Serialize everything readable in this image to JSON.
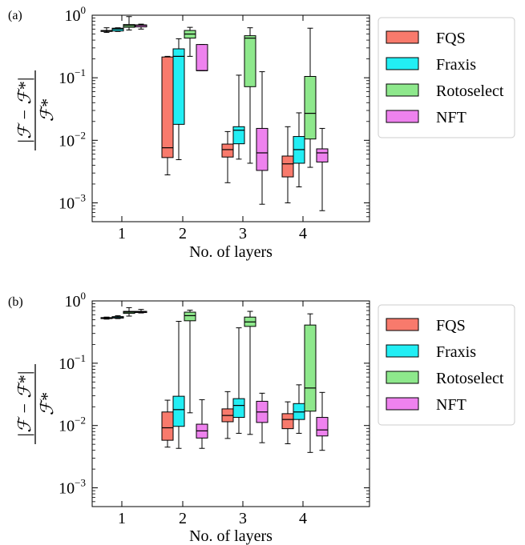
{
  "figure": {
    "ylabel": {
      "numerator": "|ℱ − ℱ*|",
      "denominator": "ℱ*"
    }
  },
  "colors": {
    "FQS": "#f87a6c",
    "Fraxis": "#22eef4",
    "Rotoselect": "#8ee88c",
    "NFT": "#ee82ee"
  },
  "chart_data": [
    {
      "type": "box",
      "panel_label": "(a)",
      "xlabel": "No. of layers",
      "categories": [
        "1",
        "2",
        "3",
        "4"
      ],
      "yscale": "log",
      "ylim": [
        0.0005,
        1
      ],
      "ytick_labels": [
        {
          "base": "10",
          "exp": "0",
          "value": 1
        },
        {
          "base": "10",
          "exp": "−1",
          "value": 0.1
        },
        {
          "base": "10",
          "exp": "−2",
          "value": 0.01
        },
        {
          "base": "10",
          "exp": "−3",
          "value": 0.001
        }
      ],
      "legend": {
        "position": "right",
        "entries": [
          "FQS",
          "Fraxis",
          "Rotoselect",
          "NFT"
        ]
      },
      "series": [
        {
          "name": "FQS",
          "boxes": [
            {
              "layers": 1,
              "whislo": 0.53,
              "q1": 0.55,
              "med": 0.56,
              "q3": 0.57,
              "whishi": 0.63
            },
            {
              "layers": 2,
              "whislo": 0.0028,
              "q1": 0.0053,
              "med": 0.0076,
              "q3": 0.215,
              "whishi": 0.22
            },
            {
              "layers": 3,
              "whislo": 0.0021,
              "q1": 0.0054,
              "med": 0.0071,
              "q3": 0.0087,
              "whishi": 0.0138
            },
            {
              "layers": 4,
              "whislo": 0.001,
              "q1": 0.0026,
              "med": 0.0042,
              "q3": 0.0056,
              "whishi": 0.0165
            }
          ]
        },
        {
          "name": "Fraxis",
          "boxes": [
            {
              "layers": 1,
              "whislo": 0.55,
              "q1": 0.56,
              "med": 0.6,
              "q3": 0.62,
              "whishi": 0.63
            },
            {
              "layers": 2,
              "whislo": 0.0049,
              "q1": 0.018,
              "med": 0.22,
              "q3": 0.29,
              "whishi": 0.42
            },
            {
              "layers": 3,
              "whislo": 0.005,
              "q1": 0.0088,
              "med": 0.0145,
              "q3": 0.0165,
              "whishi": 0.11
            },
            {
              "layers": 4,
              "whislo": 0.0018,
              "q1": 0.0043,
              "med": 0.0071,
              "q3": 0.0115,
              "whishi": 0.0275
            }
          ]
        },
        {
          "name": "Rotoselect",
          "boxes": [
            {
              "layers": 1,
              "whislo": 0.58,
              "q1": 0.64,
              "med": 0.68,
              "q3": 0.71,
              "whishi": 0.95
            },
            {
              "layers": 2,
              "whislo": 0.22,
              "q1": 0.43,
              "med": 0.5,
              "q3": 0.57,
              "whishi": 0.64
            },
            {
              "layers": 3,
              "whislo": 0.0043,
              "q1": 0.072,
              "med": 0.43,
              "q3": 0.47,
              "whishi": 0.63
            },
            {
              "layers": 4,
              "whislo": 0.0037,
              "q1": 0.0105,
              "med": 0.027,
              "q3": 0.105,
              "whishi": 0.62
            }
          ]
        },
        {
          "name": "NFT",
          "boxes": [
            {
              "layers": 1,
              "whislo": 0.6,
              "q1": 0.65,
              "med": 0.69,
              "q3": 0.7,
              "whishi": 0.72
            },
            {
              "layers": 2,
              "whislo": 0.13,
              "q1": 0.13,
              "med": 0.13,
              "q3": 0.34,
              "whishi": 0.34
            },
            {
              "layers": 3,
              "whislo": 0.00095,
              "q1": 0.0033,
              "med": 0.0063,
              "q3": 0.0155,
              "whishi": 0.125
            },
            {
              "layers": 4,
              "whislo": 0.00075,
              "q1": 0.0045,
              "med": 0.0063,
              "q3": 0.0073,
              "whishi": 0.0155
            }
          ]
        }
      ]
    },
    {
      "type": "box",
      "panel_label": "(b)",
      "xlabel": "No. of layers",
      "categories": [
        "1",
        "2",
        "3",
        "4"
      ],
      "yscale": "log",
      "ylim": [
        0.0005,
        1
      ],
      "ytick_labels": [
        {
          "base": "10",
          "exp": "0",
          "value": 1
        },
        {
          "base": "10",
          "exp": "−1",
          "value": 0.1
        },
        {
          "base": "10",
          "exp": "−2",
          "value": 0.01
        },
        {
          "base": "10",
          "exp": "−3",
          "value": 0.001
        }
      ],
      "legend": {
        "position": "right",
        "entries": [
          "FQS",
          "Fraxis",
          "Rotoselect",
          "NFT"
        ]
      },
      "series": [
        {
          "name": "FQS",
          "boxes": [
            {
              "layers": 1,
              "whislo": 0.51,
              "q1": 0.52,
              "med": 0.53,
              "q3": 0.54,
              "whishi": 0.55
            },
            {
              "layers": 2,
              "whislo": 0.0045,
              "q1": 0.0058,
              "med": 0.0092,
              "q3": 0.0165,
              "whishi": 0.0255
            },
            {
              "layers": 3,
              "whislo": 0.0062,
              "q1": 0.0115,
              "med": 0.0145,
              "q3": 0.0185,
              "whishi": 0.035
            },
            {
              "layers": 4,
              "whislo": 0.0051,
              "q1": 0.0089,
              "med": 0.0125,
              "q3": 0.0155,
              "whishi": 0.024
            }
          ]
        },
        {
          "name": "Fraxis",
          "boxes": [
            {
              "layers": 1,
              "whislo": 0.52,
              "q1": 0.53,
              "med": 0.54,
              "q3": 0.56,
              "whishi": 0.58
            },
            {
              "layers": 2,
              "whislo": 0.0043,
              "q1": 0.0097,
              "med": 0.018,
              "q3": 0.0295,
              "whishi": 0.47
            },
            {
              "layers": 3,
              "whislo": 0.0075,
              "q1": 0.0135,
              "med": 0.021,
              "q3": 0.027,
              "whishi": 0.37
            },
            {
              "layers": 4,
              "whislo": 0.0075,
              "q1": 0.0125,
              "med": 0.0165,
              "q3": 0.0225,
              "whishi": 0.045
            }
          ]
        },
        {
          "name": "Rotoselect",
          "boxes": [
            {
              "layers": 1,
              "whislo": 0.57,
              "q1": 0.63,
              "med": 0.66,
              "q3": 0.68,
              "whishi": 0.78
            },
            {
              "layers": 2,
              "whislo": 0.016,
              "q1": 0.48,
              "med": 0.58,
              "q3": 0.66,
              "whishi": 0.71
            },
            {
              "layers": 3,
              "whislo": 0.0072,
              "q1": 0.39,
              "med": 0.46,
              "q3": 0.55,
              "whishi": 0.68
            },
            {
              "layers": 4,
              "whislo": 0.0037,
              "q1": 0.017,
              "med": 0.04,
              "q3": 0.41,
              "whishi": 0.62
            }
          ]
        },
        {
          "name": "NFT",
          "boxes": [
            {
              "layers": 1,
              "whislo": 0.64,
              "q1": 0.65,
              "med": 0.67,
              "q3": 0.68,
              "whishi": 0.73
            },
            {
              "layers": 2,
              "whislo": 0.0043,
              "q1": 0.0063,
              "med": 0.0082,
              "q3": 0.0105,
              "whishi": 0.026
            },
            {
              "layers": 3,
              "whislo": 0.0053,
              "q1": 0.0112,
              "med": 0.0165,
              "q3": 0.0245,
              "whishi": 0.033
            },
            {
              "layers": 4,
              "whislo": 0.004,
              "q1": 0.0068,
              "med": 0.0085,
              "q3": 0.0135,
              "whishi": 0.034
            }
          ]
        }
      ]
    }
  ]
}
